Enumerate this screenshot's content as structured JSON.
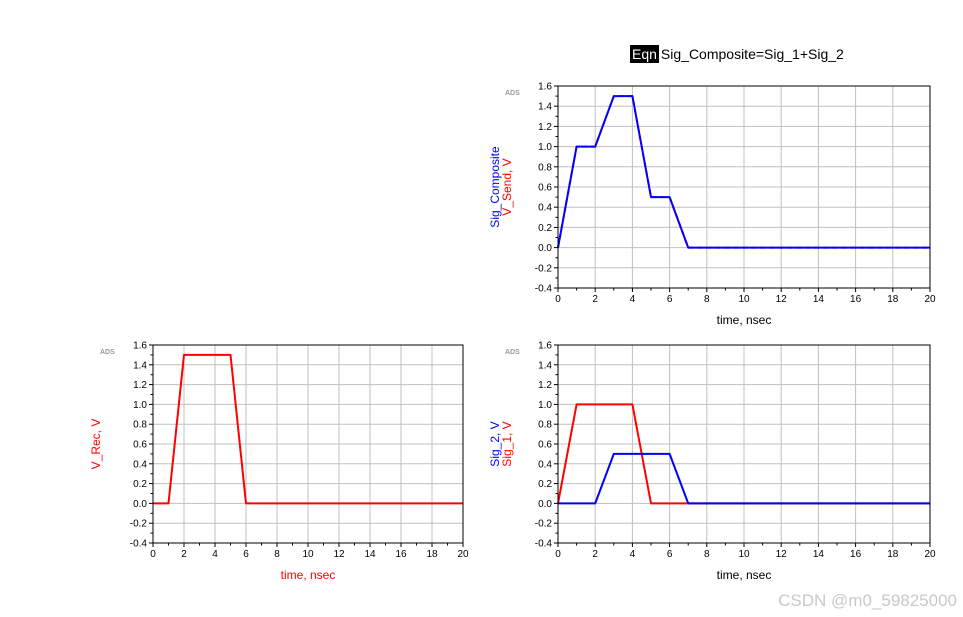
{
  "equation": {
    "tag": "Eqn",
    "text": "Sig_Composite=Sig_1+Sig_2"
  },
  "watermark": "CSDN @m0_59825000",
  "chart_data": [
    {
      "id": "composite",
      "type": "line",
      "badge": "ADS",
      "xlabel": "time, nsec",
      "xlabel_color": "#000000",
      "ylabels": [
        {
          "text": "Sig_Composite",
          "color": "#0000ff"
        },
        {
          "text": "V_Send, V",
          "color": "#ff0000"
        }
      ],
      "xlim": [
        0,
        20
      ],
      "ylim": [
        -0.4,
        1.6
      ],
      "xticks": [
        "0",
        "2",
        "4",
        "6",
        "8",
        "10",
        "12",
        "14",
        "16",
        "18",
        "20"
      ],
      "yticks": [
        "-0.4",
        "-0.2",
        "0.0",
        "0.2",
        "0.4",
        "0.6",
        "0.8",
        "1.0",
        "1.2",
        "1.4",
        "1.6"
      ],
      "grid": true,
      "series": [
        {
          "color": "#ff0000",
          "dash": true,
          "x": [
            0,
            1,
            2,
            3,
            4,
            5,
            6,
            7,
            20
          ],
          "y": [
            0,
            1.0,
            1.0,
            1.5,
            1.5,
            0.5,
            0.5,
            0,
            0
          ]
        },
        {
          "color": "#0000ff",
          "dash": false,
          "x": [
            0,
            1,
            2,
            3,
            4,
            5,
            6,
            7,
            20
          ],
          "y": [
            0,
            1.0,
            1.0,
            1.5,
            1.5,
            0.5,
            0.5,
            0,
            0
          ]
        }
      ]
    },
    {
      "id": "received",
      "type": "line",
      "badge": "ADS",
      "xlabel": "time, nsec",
      "xlabel_color": "#ff0000",
      "ylabels": [
        {
          "text": "V_Rec, V",
          "color": "#ff0000"
        }
      ],
      "xlim": [
        0,
        20
      ],
      "ylim": [
        -0.4,
        1.6
      ],
      "xticks": [
        "0",
        "2",
        "4",
        "6",
        "8",
        "10",
        "12",
        "14",
        "16",
        "18",
        "20"
      ],
      "yticks": [
        "-0.4",
        "-0.2",
        "0.0",
        "0.2",
        "0.4",
        "0.6",
        "0.8",
        "1.0",
        "1.2",
        "1.4",
        "1.6"
      ],
      "grid": true,
      "series": [
        {
          "color": "#ff0000",
          "dash": false,
          "x": [
            0,
            1,
            2,
            3,
            4,
            5,
            6,
            20
          ],
          "y": [
            0,
            0,
            1.5,
            1.5,
            1.5,
            1.5,
            0,
            0
          ]
        }
      ]
    },
    {
      "id": "components",
      "type": "line",
      "badge": "ADS",
      "xlabel": "time, nsec",
      "xlabel_color": "#000000",
      "ylabels": [
        {
          "text": "Sig_2, V",
          "color": "#0000ff"
        },
        {
          "text": "Sig_1, V",
          "color": "#ff0000"
        }
      ],
      "xlim": [
        0,
        20
      ],
      "ylim": [
        -0.4,
        1.6
      ],
      "xticks": [
        "0",
        "2",
        "4",
        "6",
        "8",
        "10",
        "12",
        "14",
        "16",
        "18",
        "20"
      ],
      "yticks": [
        "-0.4",
        "-0.2",
        "0.0",
        "0.2",
        "0.4",
        "0.6",
        "0.8",
        "1.0",
        "1.2",
        "1.4",
        "1.6"
      ],
      "grid": true,
      "series": [
        {
          "color": "#ff0000",
          "dash": false,
          "x": [
            0,
            1,
            2,
            3,
            4,
            5,
            6,
            7,
            20
          ],
          "y": [
            0,
            1.0,
            1.0,
            1.0,
            1.0,
            0,
            0,
            0,
            0
          ]
        },
        {
          "color": "#0000ff",
          "dash": false,
          "x": [
            0,
            1,
            2,
            3,
            4,
            5,
            6,
            7,
            20
          ],
          "y": [
            0,
            0,
            0,
            0.5,
            0.5,
            0.5,
            0.5,
            0,
            0
          ]
        }
      ]
    }
  ]
}
